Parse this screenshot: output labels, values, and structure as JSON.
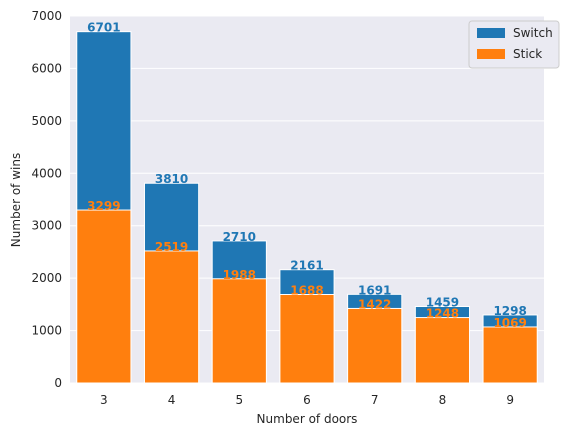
{
  "chart_data": {
    "type": "bar",
    "categories": [
      "3",
      "4",
      "5",
      "6",
      "7",
      "8",
      "9"
    ],
    "series": [
      {
        "name": "Switch",
        "values": [
          6701,
          3810,
          2710,
          2161,
          1691,
          1459,
          1298
        ],
        "color": "#1f77b4"
      },
      {
        "name": "Stick",
        "values": [
          3299,
          2519,
          1988,
          1688,
          1422,
          1248,
          1069
        ],
        "color": "#ff7f0e"
      }
    ],
    "title": "",
    "xlabel": "Number of doors",
    "ylabel": "Number of wins",
    "ylim": [
      0,
      7000
    ],
    "yticks": [
      0,
      1000,
      2000,
      3000,
      4000,
      5000,
      6000,
      7000
    ],
    "grid": true,
    "legend_position": "top-right",
    "background": "#eaeaf2"
  }
}
